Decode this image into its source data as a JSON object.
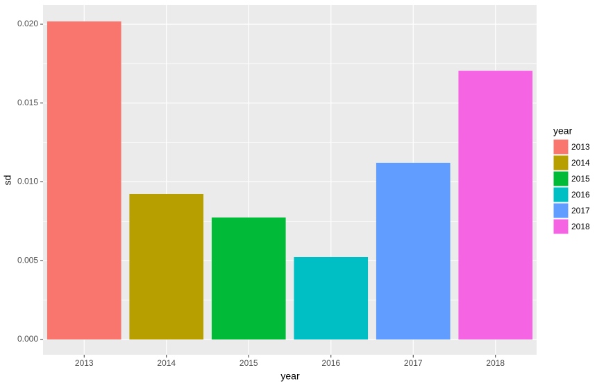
{
  "chart_data": {
    "type": "bar",
    "x_label": "year",
    "y_label": "sd",
    "legend_title": "year",
    "categories": [
      "2013",
      "2014",
      "2015",
      "2016",
      "2017",
      "2018"
    ],
    "values": [
      0.02018,
      0.00923,
      0.00774,
      0.00523,
      0.01121,
      0.01705
    ],
    "colors": [
      "#f8766d",
      "#b79f00",
      "#00ba38",
      "#00bfc4",
      "#619cff",
      "#f564e3"
    ],
    "ylim": [
      -0.00097,
      0.02123
    ],
    "yticks": [
      {
        "value": 0,
        "label": "0.000"
      },
      {
        "value": 0.005,
        "label": "0.005"
      },
      {
        "value": 0.01,
        "label": "0.010"
      },
      {
        "value": 0.015,
        "label": "0.015"
      },
      {
        "value": 0.02,
        "label": "0.020"
      }
    ],
    "grid": true,
    "legend": "right"
  }
}
